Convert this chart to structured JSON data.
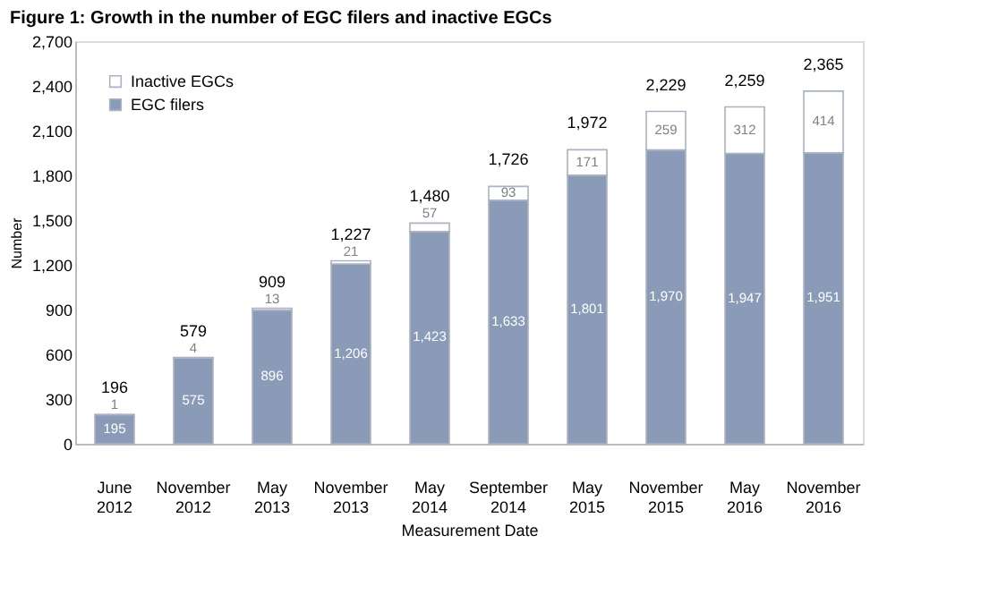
{
  "chart_data": {
    "type": "bar",
    "title": "Figure 1: Growth in the number of EGC filers and inactive EGCs",
    "xlabel": "Measurement Date",
    "ylabel": "Number",
    "categories": [
      "June 2012",
      "November 2012",
      "May 2013",
      "November 2013",
      "May 2014",
      "September 2014",
      "May 2015",
      "November 2015",
      "May 2016",
      "November 2016"
    ],
    "series": [
      {
        "name": "EGC filers",
        "color": "#8a9bb8",
        "values": [
          195,
          575,
          896,
          1206,
          1423,
          1633,
          1801,
          1970,
          1947,
          1951
        ],
        "value_labels": [
          "195",
          "575",
          "896",
          "1,206",
          "1,423",
          "1,633",
          "1,801",
          "1,970",
          "1,947",
          "1,951"
        ]
      },
      {
        "name": "Inactive EGCs",
        "color": "#ffffff",
        "values": [
          1,
          4,
          13,
          21,
          57,
          93,
          171,
          259,
          312,
          414
        ]
      }
    ],
    "stacked": true,
    "data_labels": true,
    "totals": [
      "196",
      "579",
      "909",
      "1,227",
      "1,480",
      "1,726",
      "1,972",
      "2,229",
      "2,259",
      "2,365"
    ],
    "ylim": [
      0,
      2700
    ],
    "yticks": [
      0,
      300,
      600,
      900,
      {
        "value": 1200,
        "label": "1,200"
      },
      {
        "value": 1500,
        "label": "1,500"
      },
      {
        "value": 1800,
        "label": "1,800"
      },
      {
        "value": 2100,
        "label": "2,100"
      },
      {
        "value": 2400,
        "label": "2,400"
      },
      {
        "value": 2700,
        "label": "2,700"
      }
    ],
    "grid": false,
    "legend": "top left"
  }
}
